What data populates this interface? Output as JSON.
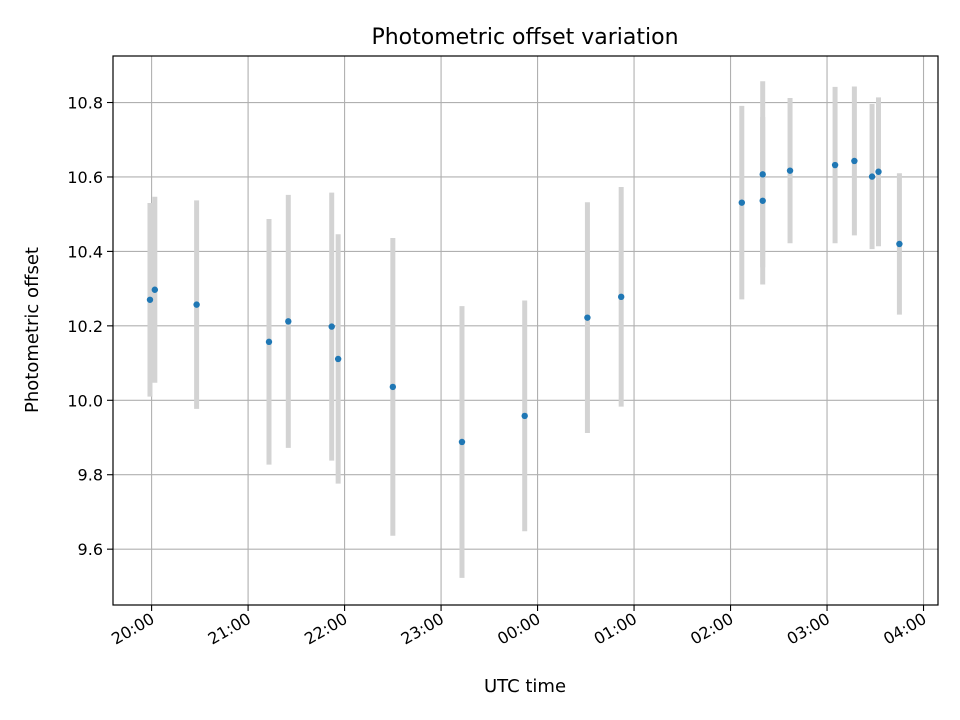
{
  "chart_data": {
    "type": "scatter",
    "title": "Photometric offset variation",
    "xlabel": "UTC time",
    "ylabel": "Photometric offset",
    "xlim": [
      "19:36",
      "04:09"
    ],
    "ylim": [
      9.45,
      10.925
    ],
    "grid": true,
    "legend": "none",
    "x_ticks": [
      "20:00",
      "21:00",
      "22:00",
      "23:00",
      "00:00",
      "01:00",
      "02:00",
      "03:00",
      "04:00"
    ],
    "y_ticks": [
      "9.6",
      "9.8",
      "10.0",
      "10.2",
      "10.4",
      "10.6",
      "10.8"
    ],
    "points": [
      {
        "x": "19:59",
        "y": 10.27,
        "err": 0.26
      },
      {
        "x": "20:02",
        "y": 10.297,
        "err": 0.25
      },
      {
        "x": "20:28",
        "y": 10.257,
        "err": 0.28
      },
      {
        "x": "21:13",
        "y": 10.157,
        "err": 0.33
      },
      {
        "x": "21:25",
        "y": 10.212,
        "err": 0.34
      },
      {
        "x": "21:52",
        "y": 10.198,
        "err": 0.36
      },
      {
        "x": "21:56",
        "y": 10.111,
        "err": 0.335
      },
      {
        "x": "22:30",
        "y": 10.036,
        "err": 0.4
      },
      {
        "x": "23:13",
        "y": 9.888,
        "err": 0.365
      },
      {
        "x": "23:52",
        "y": 9.958,
        "err": 0.31
      },
      {
        "x": "00:31",
        "y": 10.222,
        "err": 0.31
      },
      {
        "x": "00:52",
        "y": 10.278,
        "err": 0.295
      },
      {
        "x": "02:07",
        "y": 10.531,
        "err": 0.26
      },
      {
        "x": "02:20",
        "y": 10.536,
        "err": 0.225
      },
      {
        "x": "02:20",
        "y": 10.607,
        "err": 0.25
      },
      {
        "x": "02:37",
        "y": 10.617,
        "err": 0.195
      },
      {
        "x": "03:05",
        "y": 10.632,
        "err": 0.21
      },
      {
        "x": "03:17",
        "y": 10.643,
        "err": 0.2
      },
      {
        "x": "03:28",
        "y": 10.601,
        "err": 0.195
      },
      {
        "x": "03:32",
        "y": 10.614,
        "err": 0.2
      },
      {
        "x": "03:45",
        "y": 10.42,
        "err": 0.19
      }
    ],
    "colors": {
      "marker": "#1f77b4",
      "errorbar": "#d3d3d3",
      "grid": "#b0b0b0"
    }
  }
}
